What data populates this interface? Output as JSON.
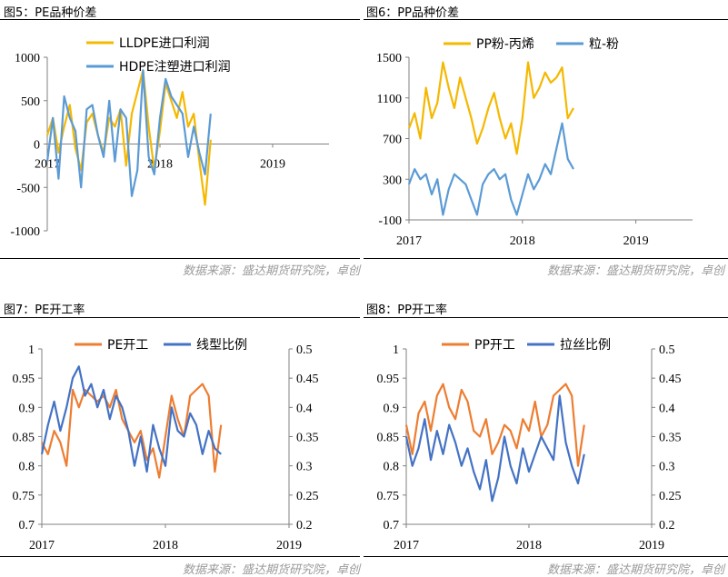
{
  "colors": {
    "orange": "#F5B800",
    "blue": "#5B9BD5",
    "orange2": "#ED7D31",
    "blue2": "#4472C4",
    "axis": "#808080",
    "source": "#9a9a9a"
  },
  "source_text": "数据来源：盛达期货研究院，卓创",
  "figures": {
    "fig5": {
      "title": "图5：PE品种价差"
    },
    "fig6": {
      "title": "图6：PP品种价差"
    },
    "fig7": {
      "title": "图7：PE开工率"
    },
    "fig8": {
      "title": "图8：PP开工率"
    }
  },
  "chart_data": [
    {
      "id": "fig5",
      "type": "line",
      "title": "图5：PE品种价差",
      "x_ticks": [
        "2017",
        "2018",
        "2019"
      ],
      "x_range": [
        2017,
        2019.5
      ],
      "y_ticks": [
        "1000",
        "500",
        "0",
        "-500",
        "-1000"
      ],
      "ylim": [
        -1000,
        1000
      ],
      "legend_position": "top",
      "series": [
        {
          "name": "LLDPE进口利润",
          "color": "#F5B800",
          "x": [
            2017.0,
            2017.05,
            2017.1,
            2017.15,
            2017.2,
            2017.25,
            2017.3,
            2017.35,
            2017.4,
            2017.45,
            2017.5,
            2017.55,
            2017.6,
            2017.65,
            2017.7,
            2017.75,
            2017.8,
            2017.85,
            2017.9,
            2017.95,
            2018.0,
            2018.05,
            2018.1,
            2018.15,
            2018.2,
            2018.25,
            2018.3,
            2018.35,
            2018.4,
            2018.45
          ],
          "y": [
            100,
            300,
            -100,
            200,
            450,
            -50,
            -300,
            250,
            350,
            100,
            -100,
            300,
            200,
            400,
            -250,
            350,
            600,
            850,
            200,
            -300,
            150,
            700,
            500,
            300,
            600,
            200,
            350,
            -200,
            -700,
            50
          ]
        },
        {
          "name": "HDPE注塑进口利润",
          "color": "#5B9BD5",
          "x": [
            2017.0,
            2017.05,
            2017.1,
            2017.15,
            2017.2,
            2017.25,
            2017.3,
            2017.35,
            2017.4,
            2017.45,
            2017.5,
            2017.55,
            2017.6,
            2017.65,
            2017.7,
            2017.75,
            2017.8,
            2017.85,
            2017.9,
            2017.95,
            2018.0,
            2018.05,
            2018.1,
            2018.15,
            2018.2,
            2018.25,
            2018.3,
            2018.35,
            2018.4,
            2018.45
          ],
          "y": [
            -200,
            300,
            -400,
            550,
            300,
            150,
            -500,
            400,
            450,
            100,
            -150,
            500,
            -200,
            400,
            300,
            -600,
            -300,
            850,
            -150,
            -350,
            300,
            750,
            550,
            450,
            350,
            -150,
            200,
            -100,
            -350,
            350
          ]
        }
      ]
    },
    {
      "id": "fig6",
      "type": "line",
      "title": "图6：PP品种价差",
      "x_ticks": [
        "2017",
        "2018",
        "2019"
      ],
      "x_range": [
        2017,
        2019.5
      ],
      "y_ticks": [
        "1500",
        "1100",
        "700",
        "300",
        "-100"
      ],
      "ylim": [
        -100,
        1500
      ],
      "legend_position": "top",
      "series": [
        {
          "name": "PP粉-丙烯",
          "color": "#F5B800",
          "x": [
            2017.0,
            2017.05,
            2017.1,
            2017.15,
            2017.2,
            2017.25,
            2017.3,
            2017.35,
            2017.4,
            2017.45,
            2017.5,
            2017.55,
            2017.6,
            2017.65,
            2017.7,
            2017.75,
            2017.8,
            2017.85,
            2017.9,
            2017.95,
            2018.0,
            2018.05,
            2018.1,
            2018.15,
            2018.2,
            2018.25,
            2018.3,
            2018.35,
            2018.4,
            2018.45
          ],
          "y": [
            800,
            950,
            700,
            1200,
            900,
            1050,
            1450,
            1200,
            1000,
            1300,
            1100,
            900,
            650,
            800,
            1000,
            1150,
            900,
            700,
            850,
            550,
            900,
            1450,
            1100,
            1200,
            1350,
            1250,
            1300,
            1400,
            900,
            1000
          ]
        },
        {
          "name": "粒-粉",
          "color": "#5B9BD5",
          "x": [
            2017.0,
            2017.05,
            2017.1,
            2017.15,
            2017.2,
            2017.25,
            2017.3,
            2017.35,
            2017.4,
            2017.45,
            2017.5,
            2017.55,
            2017.6,
            2017.65,
            2017.7,
            2017.75,
            2017.8,
            2017.85,
            2017.9,
            2017.95,
            2018.0,
            2018.05,
            2018.1,
            2018.15,
            2018.2,
            2018.25,
            2018.3,
            2018.35,
            2018.4,
            2018.45
          ],
          "y": [
            250,
            400,
            300,
            350,
            150,
            300,
            -50,
            200,
            350,
            300,
            250,
            100,
            -50,
            250,
            350,
            400,
            300,
            350,
            100,
            -50,
            150,
            350,
            200,
            300,
            450,
            350,
            600,
            850,
            500,
            400
          ]
        }
      ]
    },
    {
      "id": "fig7",
      "type": "line",
      "title": "图7：PE开工率",
      "x_ticks": [
        "2017",
        "2018",
        "2019"
      ],
      "x_range": [
        2017,
        2019
      ],
      "y_ticks": [
        "1",
        "0.95",
        "0.9",
        "0.85",
        "0.8",
        "0.75",
        "0.7"
      ],
      "ylim": [
        0.7,
        1.0
      ],
      "y2_ticks": [
        "0.5",
        "0.45",
        "0.4",
        "0.35",
        "0.3",
        "0.25",
        "0.2"
      ],
      "y2lim": [
        0.2,
        0.5
      ],
      "legend_position": "top",
      "series": [
        {
          "name": "PE开工",
          "color": "#ED7D31",
          "axis": "left",
          "x": [
            2017.0,
            2017.05,
            2017.1,
            2017.15,
            2017.2,
            2017.25,
            2017.3,
            2017.35,
            2017.4,
            2017.45,
            2017.5,
            2017.55,
            2017.6,
            2017.65,
            2017.7,
            2017.75,
            2017.8,
            2017.85,
            2017.9,
            2017.95,
            2018.0,
            2018.05,
            2018.1,
            2018.15,
            2018.2,
            2018.25,
            2018.3,
            2018.35,
            2018.4,
            2018.45
          ],
          "y": [
            0.84,
            0.82,
            0.86,
            0.84,
            0.8,
            0.93,
            0.9,
            0.93,
            0.92,
            0.91,
            0.92,
            0.9,
            0.93,
            0.88,
            0.86,
            0.84,
            0.86,
            0.81,
            0.83,
            0.78,
            0.85,
            0.92,
            0.88,
            0.85,
            0.92,
            0.93,
            0.94,
            0.92,
            0.79,
            0.87
          ]
        },
        {
          "name": "线型比例",
          "color": "#4472C4",
          "axis": "right",
          "x": [
            2017.0,
            2017.05,
            2017.1,
            2017.15,
            2017.2,
            2017.25,
            2017.3,
            2017.35,
            2017.4,
            2017.45,
            2017.5,
            2017.55,
            2017.6,
            2017.65,
            2017.7,
            2017.75,
            2017.8,
            2017.85,
            2017.9,
            2017.95,
            2018.0,
            2018.05,
            2018.1,
            2018.15,
            2018.2,
            2018.25,
            2018.3,
            2018.35,
            2018.4,
            2018.45
          ],
          "y": [
            0.32,
            0.37,
            0.41,
            0.36,
            0.4,
            0.45,
            0.47,
            0.42,
            0.44,
            0.4,
            0.43,
            0.38,
            0.42,
            0.4,
            0.36,
            0.3,
            0.35,
            0.29,
            0.37,
            0.33,
            0.3,
            0.4,
            0.36,
            0.35,
            0.39,
            0.37,
            0.32,
            0.36,
            0.33,
            0.32
          ]
        }
      ]
    },
    {
      "id": "fig8",
      "type": "line",
      "title": "图8：PP开工率",
      "x_ticks": [
        "2017",
        "2018",
        "2019"
      ],
      "x_range": [
        2017,
        2019
      ],
      "y_ticks": [
        "1",
        "0.95",
        "0.9",
        "0.85",
        "0.8",
        "0.75",
        "0.7"
      ],
      "ylim": [
        0.7,
        1.0
      ],
      "y2_ticks": [
        "0.5",
        "0.45",
        "0.4",
        "0.35",
        "0.3",
        "0.25",
        "0.2"
      ],
      "y2lim": [
        0.2,
        0.5
      ],
      "legend_position": "top",
      "series": [
        {
          "name": "PP开工",
          "color": "#ED7D31",
          "axis": "left",
          "x": [
            2017.0,
            2017.05,
            2017.1,
            2017.15,
            2017.2,
            2017.25,
            2017.3,
            2017.35,
            2017.4,
            2017.45,
            2017.5,
            2017.55,
            2017.6,
            2017.65,
            2017.7,
            2017.75,
            2017.8,
            2017.85,
            2017.9,
            2017.95,
            2018.0,
            2018.05,
            2018.1,
            2018.15,
            2018.2,
            2018.25,
            2018.3,
            2018.35,
            2018.4,
            2018.45
          ],
          "y": [
            0.87,
            0.82,
            0.89,
            0.91,
            0.86,
            0.92,
            0.94,
            0.9,
            0.88,
            0.93,
            0.91,
            0.86,
            0.85,
            0.88,
            0.82,
            0.84,
            0.87,
            0.86,
            0.83,
            0.88,
            0.86,
            0.91,
            0.85,
            0.87,
            0.92,
            0.93,
            0.94,
            0.92,
            0.8,
            0.87
          ]
        },
        {
          "name": "拉丝比例",
          "color": "#4472C4",
          "axis": "right",
          "x": [
            2017.0,
            2017.05,
            2017.1,
            2017.15,
            2017.2,
            2017.25,
            2017.3,
            2017.35,
            2017.4,
            2017.45,
            2017.5,
            2017.55,
            2017.6,
            2017.65,
            2017.7,
            2017.75,
            2017.8,
            2017.85,
            2017.9,
            2017.95,
            2018.0,
            2018.05,
            2018.1,
            2018.15,
            2018.2,
            2018.25,
            2018.3,
            2018.35,
            2018.4,
            2018.45
          ],
          "y": [
            0.35,
            0.3,
            0.33,
            0.38,
            0.31,
            0.36,
            0.32,
            0.37,
            0.34,
            0.3,
            0.33,
            0.29,
            0.26,
            0.31,
            0.24,
            0.28,
            0.35,
            0.3,
            0.27,
            0.33,
            0.29,
            0.32,
            0.35,
            0.33,
            0.31,
            0.42,
            0.34,
            0.3,
            0.27,
            0.32
          ]
        }
      ]
    }
  ]
}
